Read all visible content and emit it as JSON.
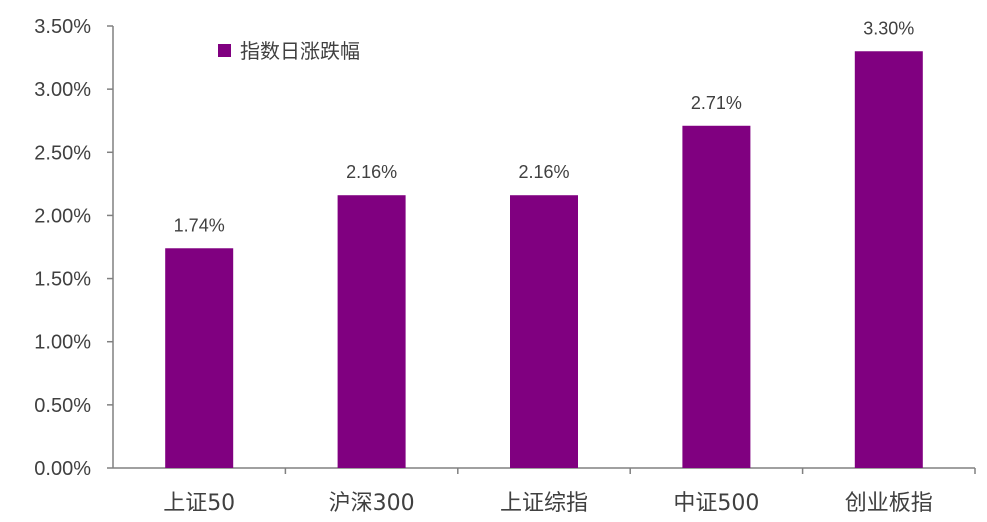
{
  "chart_data": {
    "type": "bar",
    "categories": [
      "上证50",
      "沪深300",
      "上证综指",
      "中证500",
      "创业板指"
    ],
    "series": [
      {
        "name": "指数日涨跌幅",
        "values": [
          1.74,
          2.16,
          2.16,
          2.71,
          3.3
        ],
        "labels": [
          "1.74%",
          "2.16%",
          "2.16%",
          "2.71%",
          "3.30%"
        ]
      }
    ],
    "ylim": [
      0,
      3.5
    ],
    "yticks": [
      0,
      0.5,
      1.0,
      1.5,
      2.0,
      2.5,
      3.0,
      3.5
    ],
    "ytick_labels": [
      "0.00%",
      "0.50%",
      "1.00%",
      "1.50%",
      "2.00%",
      "2.50%",
      "3.00%",
      "3.50%"
    ],
    "legend": "top-left",
    "grid": false,
    "bar_color": "#800080",
    "axis_color": "#808080"
  }
}
